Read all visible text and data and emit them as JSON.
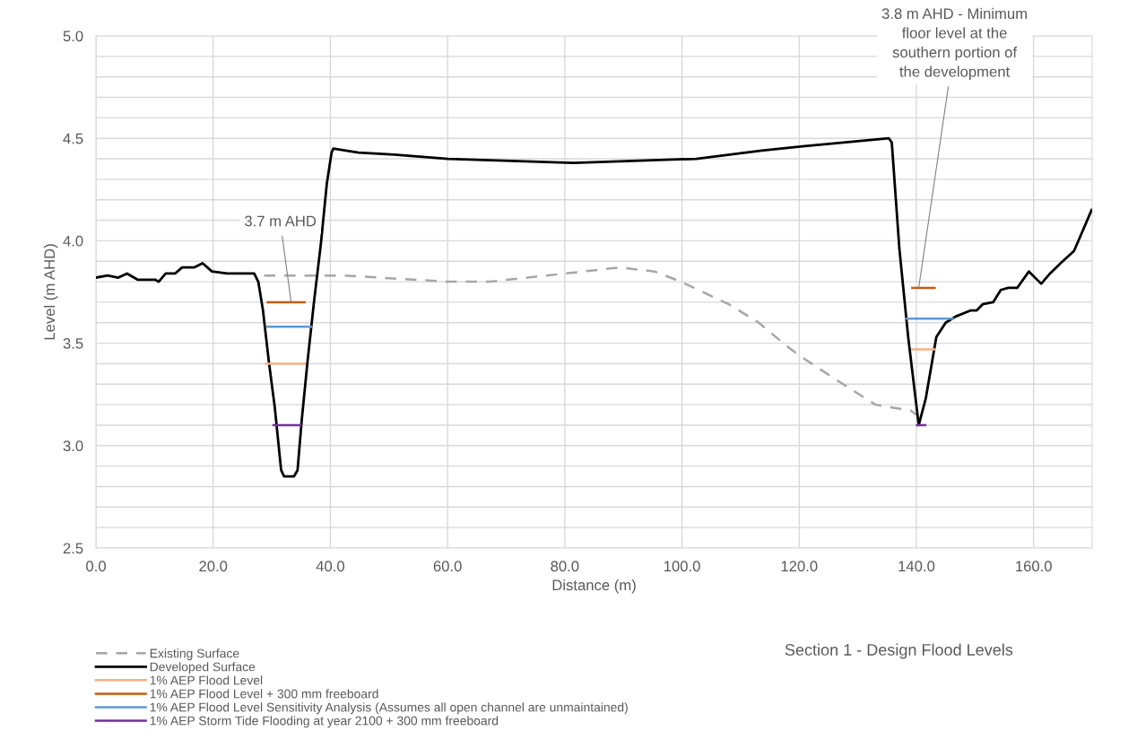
{
  "chart_data": {
    "type": "line",
    "title": "Section 1 - Design Flood Levels",
    "xlabel": "Distance (m)",
    "ylabel": "Level (m AHD)",
    "xlim": [
      0,
      170
    ],
    "ylim": [
      2.5,
      5.0
    ],
    "xticks": [
      {
        "value": 0,
        "label": "0.0"
      },
      {
        "value": 20,
        "label": "20.0"
      },
      {
        "value": 40,
        "label": "40.0"
      },
      {
        "value": 60,
        "label": "60.0"
      },
      {
        "value": 80,
        "label": "80.0"
      },
      {
        "value": 100,
        "label": "100.0"
      },
      {
        "value": 120,
        "label": "120.0"
      },
      {
        "value": 140,
        "label": "140.0"
      },
      {
        "value": 160,
        "label": "160.0"
      }
    ],
    "yticks": [
      {
        "value": 2.5,
        "label": "2.5"
      },
      {
        "value": 2.6,
        "label": null
      },
      {
        "value": 2.7,
        "label": null
      },
      {
        "value": 2.8,
        "label": null
      },
      {
        "value": 2.9,
        "label": null
      },
      {
        "value": 3.0,
        "label": "3.0"
      },
      {
        "value": 3.1,
        "label": null
      },
      {
        "value": 3.2,
        "label": null
      },
      {
        "value": 3.3,
        "label": null
      },
      {
        "value": 3.4,
        "label": null
      },
      {
        "value": 3.5,
        "label": "3.5"
      },
      {
        "value": 3.6,
        "label": null
      },
      {
        "value": 3.7,
        "label": null
      },
      {
        "value": 3.8,
        "label": null
      },
      {
        "value": 3.9,
        "label": null
      },
      {
        "value": 4.0,
        "label": "4.0"
      },
      {
        "value": 4.1,
        "label": null
      },
      {
        "value": 4.2,
        "label": null
      },
      {
        "value": 4.3,
        "label": null
      },
      {
        "value": 4.4,
        "label": null
      },
      {
        "value": 4.5,
        "label": "4.5"
      },
      {
        "value": 4.6,
        "label": null
      },
      {
        "value": 4.7,
        "label": null
      },
      {
        "value": 4.8,
        "label": null
      },
      {
        "value": 4.9,
        "label": null
      },
      {
        "value": 5.0,
        "label": "5.0"
      }
    ],
    "grid": true,
    "legend": "bottom left",
    "marker": "none",
    "series": [
      {
        "name": "Existing Surface",
        "color": "#a6a6a6",
        "line_style": "dashed",
        "x": [
          28.7,
          42.5,
          60.1,
          67.2,
          80.0,
          89.4,
          95.3,
          99.8,
          108.0,
          113.1,
          117.7,
          120.0,
          126.4,
          133.0,
          139.1,
          140.0
        ],
        "values": [
          3.83,
          3.83,
          3.8,
          3.8,
          3.84,
          3.87,
          3.85,
          3.8,
          3.69,
          3.6,
          3.49,
          3.44,
          3.32,
          3.2,
          3.17,
          3.15
        ]
      },
      {
        "name": "Developed Surface",
        "color": "#000000",
        "line_style": "solid",
        "x": [
          0,
          2.0,
          3.8,
          5.3,
          7.1,
          10.1,
          10.7,
          11.9,
          13.5,
          14.7,
          16.8,
          18.2,
          19.8,
          22.4,
          27.0,
          27.7,
          28.5,
          29.5,
          30.5,
          31.6,
          32.1,
          33.8,
          34.4,
          35.1,
          36.1,
          37.2,
          38.4,
          39.4,
          40.2,
          40.5,
          44.8,
          50.9,
          60.1,
          81.5,
          102.4,
          113.6,
          120.2,
          135.3,
          135.8,
          137.1,
          138.6,
          140.4,
          141.6,
          143.4,
          145.0,
          146.7,
          149.3,
          150.3,
          151.3,
          153.1,
          154.4,
          155.7,
          157.2,
          159.2,
          161.3,
          162.8,
          164.6,
          166.9,
          168.4,
          169.9
        ],
        "values": [
          3.82,
          3.83,
          3.82,
          3.84,
          3.81,
          3.81,
          3.8,
          3.84,
          3.84,
          3.87,
          3.87,
          3.89,
          3.85,
          3.84,
          3.84,
          3.8,
          3.66,
          3.41,
          3.19,
          2.88,
          2.85,
          2.85,
          2.88,
          3.12,
          3.41,
          3.7,
          3.99,
          4.28,
          4.43,
          4.45,
          4.43,
          4.42,
          4.4,
          4.38,
          4.4,
          4.44,
          4.46,
          4.5,
          4.48,
          3.96,
          3.53,
          3.1,
          3.23,
          3.53,
          3.6,
          3.63,
          3.66,
          3.66,
          3.69,
          3.7,
          3.76,
          3.77,
          3.77,
          3.85,
          3.79,
          3.84,
          3.89,
          3.95,
          4.05,
          4.15
        ]
      },
      {
        "name": "1% AEP Flood Level",
        "color": "#f4b183",
        "line_style": "solid",
        "x": [
          29.0,
          35.6,
          37.0,
          139.3,
          143.1
        ],
        "values": [
          3.4,
          3.4,
          null,
          3.47,
          3.47
        ]
      },
      {
        "name": "1% AEP Flood Level + 300 mm freeboard",
        "color": "#c55a11",
        "line_style": "solid",
        "x": [
          29.3,
          35.6,
          37.0,
          139.3,
          143.1
        ],
        "values": [
          3.7,
          3.7,
          null,
          3.77,
          3.77
        ]
      },
      {
        "name": "1% AEP Flood Level Sensitivity Analysis (Assumes all open channel are unmaintained)",
        "color": "#5b9bd5",
        "line_style": "solid",
        "x": [
          29.2,
          36.7,
          38.0,
          138.3,
          146.2
        ],
        "values": [
          3.58,
          3.58,
          null,
          3.62,
          3.62
        ]
      },
      {
        "name": "1% AEP Storm Tide Flooding at year 2100 + 300 mm freeboard",
        "color": "#7030a0",
        "line_style": "solid",
        "x": [
          30.3,
          34.9,
          36.0,
          140.1,
          141.5
        ],
        "values": [
          3.1,
          3.1,
          null,
          3.1,
          3.1
        ]
      }
    ],
    "annotations": [
      {
        "text": "3.7 m AHD",
        "x": 33.3,
        "y": 3.7
      },
      {
        "text": "3.8 m AHD - Minimum\nfloor level at the\nsouthern portion of\nthe development",
        "x": 140.4,
        "y": 3.77
      }
    ]
  }
}
